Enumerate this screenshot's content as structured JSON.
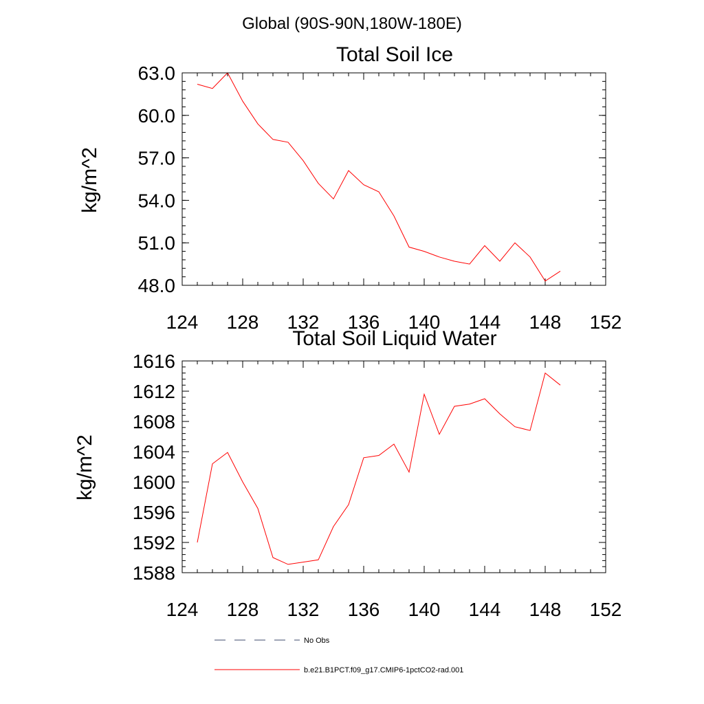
{
  "suptitle": "Global (90S-90N,180W-180E)",
  "chart_data": [
    {
      "type": "line",
      "title": "Total Soil Ice",
      "ylabel": "kg/m^2",
      "xlabel": "",
      "xlim": [
        124,
        152
      ],
      "ylim": [
        48.0,
        63.0
      ],
      "xticks": [
        "124",
        "128",
        "132",
        "136",
        "140",
        "144",
        "148",
        "152"
      ],
      "yticks": [
        "48.0",
        "51.0",
        "54.0",
        "57.0",
        "60.0",
        "63.0"
      ],
      "series": [
        {
          "name": "b.e21.B1PCT.f09_g17.CMIP6-1pctCO2-rad.001",
          "color": "#ff0000",
          "x": [
            125,
            126,
            127,
            128,
            129,
            130,
            131,
            132,
            133,
            134,
            135,
            136,
            137,
            138,
            139,
            140,
            141,
            142,
            143,
            144,
            145,
            146,
            147,
            148,
            149
          ],
          "y": [
            62.2,
            61.9,
            63.0,
            61.0,
            59.4,
            58.3,
            58.1,
            56.8,
            55.2,
            54.1,
            56.1,
            55.1,
            54.6,
            52.9,
            50.7,
            50.4,
            50.0,
            49.7,
            49.5,
            50.8,
            49.7,
            51.0,
            50.0,
            48.3,
            49.0
          ]
        }
      ]
    },
    {
      "type": "line",
      "title": "Total Soil Liquid Water",
      "ylabel": "kg/m^2",
      "xlabel": "",
      "xlim": [
        124,
        152
      ],
      "ylim": [
        1588,
        1616
      ],
      "xticks": [
        "124",
        "128",
        "132",
        "136",
        "140",
        "144",
        "148",
        "152"
      ],
      "yticks": [
        "1588",
        "1592",
        "1596",
        "1600",
        "1604",
        "1608",
        "1612",
        "1616"
      ],
      "series": [
        {
          "name": "b.e21.B1PCT.f09_g17.CMIP6-1pctCO2-rad.001",
          "color": "#ff0000",
          "x": [
            125,
            126,
            127,
            128,
            129,
            130,
            131,
            132,
            133,
            134,
            135,
            136,
            137,
            138,
            139,
            140,
            141,
            142,
            143,
            144,
            145,
            146,
            147,
            148,
            149
          ],
          "y": [
            1592.0,
            1602.4,
            1603.9,
            1600.0,
            1596.5,
            1590.0,
            1589.1,
            1589.4,
            1589.7,
            1594.1,
            1597.0,
            1603.2,
            1603.5,
            1605.0,
            1601.3,
            1611.6,
            1606.3,
            1610.0,
            1610.3,
            1611.0,
            1609.0,
            1607.3,
            1606.8,
            1614.4,
            1612.8
          ]
        }
      ]
    }
  ],
  "legend": {
    "placement": "bottom-center",
    "entries": [
      {
        "label": "No Obs",
        "color": "#3d4a6b",
        "style": "dashed"
      },
      {
        "label": "b.e21.B1PCT.f09_g17.CMIP6-1pctCO2-rad.001",
        "color": "#ff0000",
        "style": "solid"
      }
    ]
  }
}
